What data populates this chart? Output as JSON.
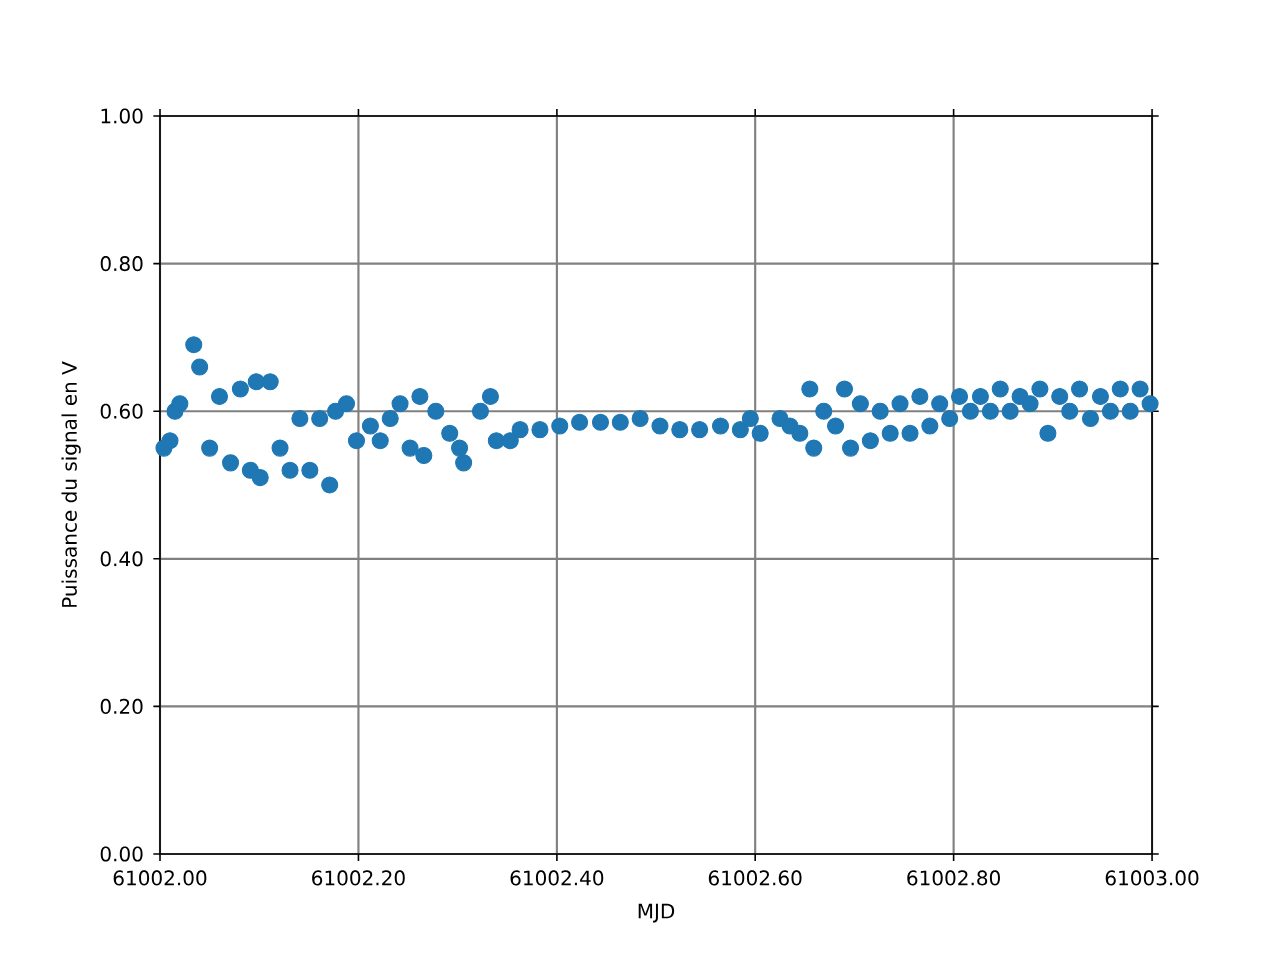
{
  "chart_data": {
    "type": "scatter",
    "xlabel": "MJD",
    "ylabel": "Puissance du signal en V",
    "x": [
      61002.004,
      61002.01,
      61002.015,
      61002.02,
      61002.034,
      61002.04,
      61002.05,
      61002.06,
      61002.071,
      61002.081,
      61002.091,
      61002.097,
      61002.101,
      61002.111,
      61002.121,
      61002.131,
      61002.141,
      61002.151,
      61002.161,
      61002.171,
      61002.177,
      61002.188,
      61002.198,
      61002.212,
      61002.222,
      61002.232,
      61002.242,
      61002.252,
      61002.262,
      61002.266,
      61002.278,
      61002.292,
      61002.302,
      61002.306,
      61002.323,
      61002.333,
      61002.339,
      61002.353,
      61002.363,
      61002.383,
      61002.403,
      61002.423,
      61002.444,
      61002.464,
      61002.484,
      61002.504,
      61002.524,
      61002.544,
      61002.565,
      61002.585,
      61002.595,
      61002.605,
      61002.625,
      61002.635,
      61002.645,
      61002.655,
      61002.659,
      61002.669,
      61002.681,
      61002.69,
      61002.696,
      61002.706,
      61002.716,
      61002.726,
      61002.736,
      61002.746,
      61002.756,
      61002.766,
      61002.776,
      61002.786,
      61002.796,
      61002.806,
      61002.817,
      61002.827,
      61002.837,
      61002.847,
      61002.857,
      61002.867,
      61002.877,
      61002.887,
      61002.895,
      61002.907,
      61002.917,
      61002.927,
      61002.938,
      61002.948,
      61002.958,
      61002.968,
      61002.978,
      61002.988,
      61002.998
    ],
    "values": [
      0.55,
      0.56,
      0.6,
      0.61,
      0.69,
      0.66,
      0.55,
      0.62,
      0.53,
      0.63,
      0.52,
      0.64,
      0.51,
      0.64,
      0.55,
      0.52,
      0.59,
      0.52,
      0.59,
      0.5,
      0.6,
      0.61,
      0.56,
      0.58,
      0.56,
      0.59,
      0.61,
      0.55,
      0.62,
      0.54,
      0.6,
      0.57,
      0.55,
      0.53,
      0.6,
      0.62,
      0.56,
      0.56,
      0.575,
      0.575,
      0.58,
      0.585,
      0.585,
      0.585,
      0.59,
      0.58,
      0.575,
      0.575,
      0.58,
      0.575,
      0.59,
      0.57,
      0.59,
      0.58,
      0.57,
      0.63,
      0.55,
      0.6,
      0.58,
      0.63,
      0.55,
      0.61,
      0.56,
      0.6,
      0.57,
      0.61,
      0.57,
      0.62,
      0.58,
      0.61,
      0.59,
      0.62,
      0.6,
      0.62,
      0.6,
      0.63,
      0.6,
      0.62,
      0.61,
      0.63,
      0.57,
      0.62,
      0.6,
      0.63,
      0.59,
      0.62,
      0.6,
      0.63,
      0.6,
      0.63,
      0.61
    ],
    "color": "#1f77b4",
    "marker": "circle",
    "grid": true,
    "xlim": [
      61002.0,
      61003.0
    ],
    "xticks": [
      {
        "value": 61002.0,
        "label": "61002.00"
      },
      {
        "value": 61002.2,
        "label": "61002.20"
      },
      {
        "value": 61002.4,
        "label": "61002.40"
      },
      {
        "value": 61002.6,
        "label": "61002.60"
      },
      {
        "value": 61002.8,
        "label": "61002.80"
      },
      {
        "value": 61003.0,
        "label": "61003.00"
      }
    ],
    "ylim": [
      0.0,
      1.0
    ],
    "yticks": [
      {
        "value": 0.0,
        "label": "0.00"
      },
      {
        "value": 0.2,
        "label": "0.20"
      },
      {
        "value": 0.4,
        "label": "0.40"
      },
      {
        "value": 0.6,
        "label": "0.60"
      },
      {
        "value": 0.8,
        "label": "0.80"
      },
      {
        "value": 1.0,
        "label": "1.00"
      }
    ]
  }
}
